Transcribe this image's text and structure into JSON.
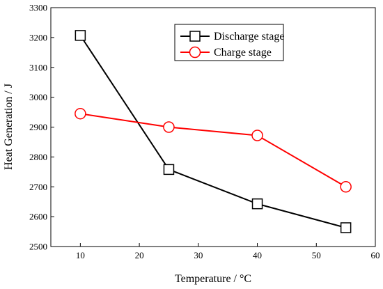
{
  "chart_data": {
    "type": "line",
    "title": "",
    "xlabel": "Temperature / °C",
    "ylabel": "Heat Generation / J",
    "xlim": [
      5,
      60
    ],
    "ylim": [
      2500,
      3300
    ],
    "x_ticks": [
      10,
      20,
      30,
      40,
      50,
      60
    ],
    "y_ticks": [
      2500,
      2600,
      2700,
      2800,
      2900,
      3000,
      3100,
      3200,
      3300
    ],
    "grid": false,
    "legend_position": "top-right",
    "series": [
      {
        "name": "Discharge stage",
        "color": "#000000",
        "marker": "square",
        "x": [
          10,
          25,
          40,
          55
        ],
        "y": [
          3207,
          2758,
          2643,
          2563
        ]
      },
      {
        "name": "Charge stage",
        "color": "#ff0000",
        "marker": "circle",
        "x": [
          10,
          25,
          40,
          55
        ],
        "y": [
          2945,
          2900,
          2872,
          2700
        ]
      }
    ]
  }
}
